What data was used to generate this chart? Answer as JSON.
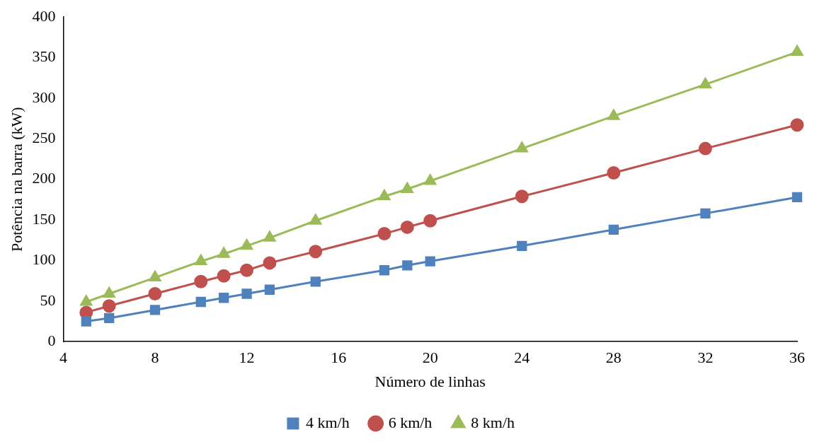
{
  "chart_data": {
    "type": "line",
    "xlabel": "Número de linhas",
    "ylabel": "Potência na barra (kW)",
    "xlim": [
      4,
      36
    ],
    "xticks": [
      4,
      8,
      12,
      16,
      20,
      24,
      28,
      32,
      36
    ],
    "ylim": [
      0,
      400
    ],
    "yticks": [
      0,
      50,
      100,
      150,
      200,
      250,
      300,
      350,
      400
    ],
    "grid": false,
    "legend": "bottom",
    "line_style": "solid",
    "series": [
      {
        "name": "4 km/h",
        "color": "#4f81bd",
        "marker": "square",
        "x": [
          5,
          6,
          8,
          10,
          11,
          12,
          13,
          15,
          18,
          19,
          20,
          24,
          28,
          32,
          36
        ],
        "values": [
          25,
          29,
          39,
          49,
          54,
          59,
          64,
          74,
          88,
          94,
          99,
          118,
          138,
          158,
          178
        ]
      },
      {
        "name": "6 km/h",
        "color": "#c0504d",
        "marker": "circle",
        "x": [
          5,
          6,
          8,
          10,
          11,
          12,
          13,
          15,
          18,
          19,
          20,
          24,
          28,
          32,
          36
        ],
        "values": [
          36,
          44,
          59,
          74,
          81,
          88,
          97,
          111,
          133,
          141,
          149,
          179,
          208,
          238,
          267
        ]
      },
      {
        "name": "8 km/h",
        "color": "#9bbb59",
        "marker": "triangle",
        "x": [
          5,
          6,
          8,
          10,
          11,
          12,
          13,
          15,
          18,
          19,
          20,
          24,
          28,
          32,
          36
        ],
        "values": [
          49,
          59,
          79,
          99,
          108,
          118,
          128,
          149,
          179,
          188,
          198,
          238,
          278,
          317,
          357
        ]
      }
    ]
  }
}
